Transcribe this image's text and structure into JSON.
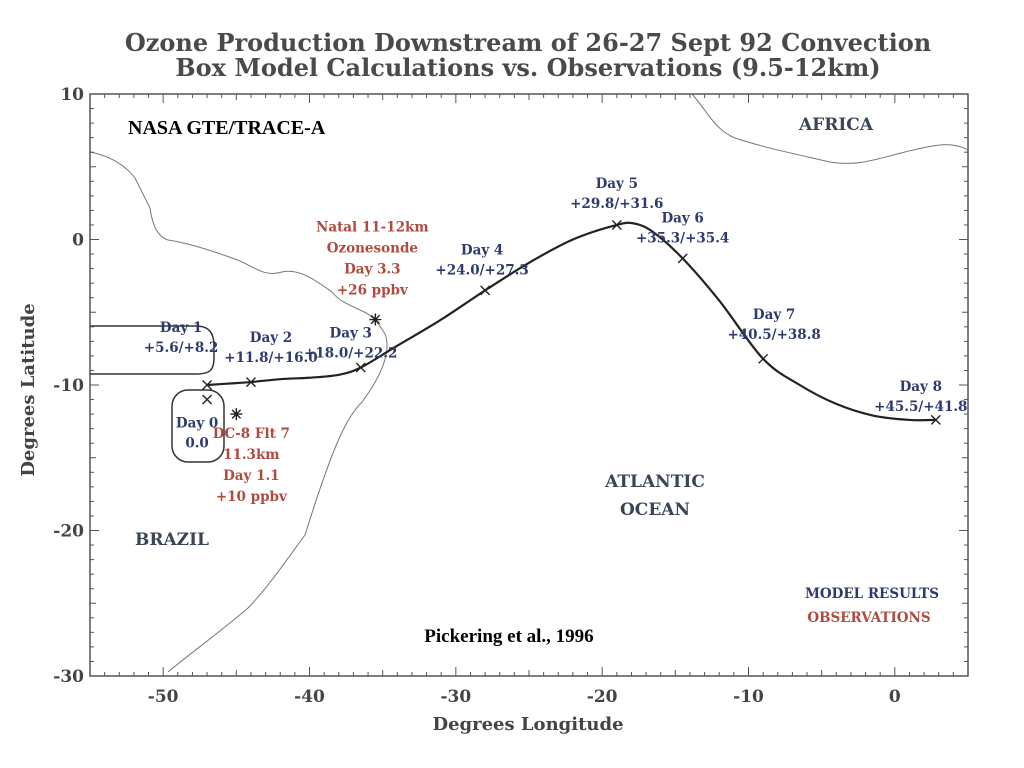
{
  "chart_data": {
    "type": "line",
    "title": "Ozone Production Downstream of 26-27 Sept 92 Convection",
    "subtitle": "Box Model Calculations vs. Observations (9.5-12km)",
    "xlabel": "Degrees Longitude",
    "ylabel": "Degrees Latitude",
    "xlim": [
      -55,
      5
    ],
    "ylim": [
      -30,
      10
    ],
    "xticks": [
      "-50",
      "-40",
      "-30",
      "-20",
      "-10",
      "0"
    ],
    "yticks": [
      "10",
      "0",
      "-10",
      "-20",
      "-30"
    ],
    "grid": false,
    "trajectory": [
      {
        "x": -47.0,
        "y": -10.0
      },
      {
        "x": -45.5,
        "y": -9.9
      },
      {
        "x": -44.0,
        "y": -9.8
      },
      {
        "x": -42.0,
        "y": -9.6
      },
      {
        "x": -40.0,
        "y": -9.5
      },
      {
        "x": -38.0,
        "y": -9.3
      },
      {
        "x": -36.5,
        "y": -8.8
      },
      {
        "x": -34.0,
        "y": -7.3
      },
      {
        "x": -31.0,
        "y": -5.5
      },
      {
        "x": -28.0,
        "y": -3.5
      },
      {
        "x": -25.0,
        "y": -1.6
      },
      {
        "x": -22.0,
        "y": 0.0
      },
      {
        "x": -19.0,
        "y": 1.0
      },
      {
        "x": -17.8,
        "y": 1.1
      },
      {
        "x": -16.5,
        "y": 0.5
      },
      {
        "x": -14.5,
        "y": -1.3
      },
      {
        "x": -12.0,
        "y": -4.2
      },
      {
        "x": -9.0,
        "y": -8.2
      },
      {
        "x": -6.5,
        "y": -10.0
      },
      {
        "x": -4.0,
        "y": -11.3
      },
      {
        "x": -1.5,
        "y": -12.1
      },
      {
        "x": 1.0,
        "y": -12.4
      },
      {
        "x": 2.8,
        "y": -12.4
      }
    ],
    "model_days": [
      {
        "day": "Day 0",
        "value": "0.0",
        "x": -47.0,
        "y": -11.0
      },
      {
        "day": "Day 1",
        "value": "+5.6/+8.2",
        "x": -47.0,
        "y": -10.0
      },
      {
        "day": "Day 2",
        "value": "+11.8/+16.0",
        "x": -44.0,
        "y": -9.8
      },
      {
        "day": "Day 3",
        "value": "+18.0/+22.2",
        "x": -36.5,
        "y": -8.8
      },
      {
        "day": "Day 4",
        "value": "+24.0/+27.3",
        "x": -28.0,
        "y": -3.5
      },
      {
        "day": "Day 5",
        "value": "+29.8/+31.6",
        "x": -19.0,
        "y": 1.0
      },
      {
        "day": "Day 6",
        "value": "+35.3/+35.4",
        "x": -14.5,
        "y": -1.3
      },
      {
        "day": "Day 7",
        "value": "+40.5/+38.8",
        "x": -9.0,
        "y": -8.2
      },
      {
        "day": "Day 8",
        "value": "+45.5/+41.8",
        "x": 2.8,
        "y": -12.4
      }
    ],
    "observations": [
      {
        "lines": [
          "Natal 11-12km",
          "Ozonesonde",
          "Day 3.3",
          "+26 ppbv"
        ],
        "x": -35.5,
        "y": -5.5
      },
      {
        "lines": [
          "DC-8 Flt 7",
          "11.3km",
          "Day 1.1",
          "+10 ppbv"
        ],
        "x": -45.0,
        "y": -12.0
      }
    ],
    "regions": {
      "africa": "AFRICA",
      "ocean": [
        "ATLANTIC",
        "OCEAN"
      ],
      "brazil": "BRAZIL"
    },
    "legend": {
      "model": "MODEL RESULTS",
      "observations": "OBSERVATIONS"
    },
    "campaign": "NASA GTE/TRACE-A",
    "citation": "Pickering et al., 1996",
    "colors": {
      "model": "#2d3a6e",
      "observations": "#b04a3e",
      "line": "#222222"
    }
  }
}
